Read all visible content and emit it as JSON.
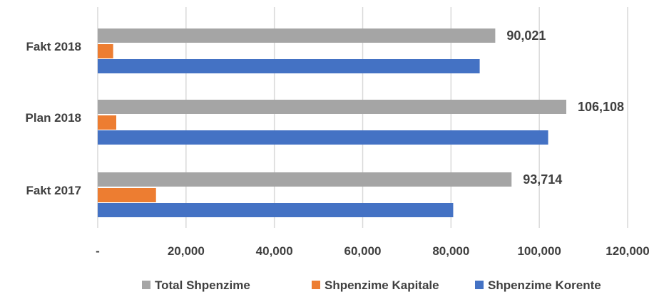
{
  "chart_data": {
    "type": "bar",
    "orientation": "horizontal",
    "categories": [
      "Fakt 2018",
      "Plan 2018",
      "Fakt  2017"
    ],
    "series": [
      {
        "name": "Total Shpenzime",
        "color": "#a5a5a5",
        "values": [
          90021,
          106108,
          93714
        ]
      },
      {
        "name": "Shpenzime Kapitale",
        "color": "#ed7d31",
        "values": [
          3500,
          4200,
          13200
        ]
      },
      {
        "name": "Shpenzime Korente",
        "color": "#4472c4",
        "values": [
          86500,
          102000,
          80500
        ]
      }
    ],
    "data_labels": [
      "90,021",
      "106,108",
      "93,714"
    ],
    "xlim": [
      0,
      120000
    ],
    "xticks": [
      0,
      20000,
      40000,
      60000,
      80000,
      100000,
      120000
    ],
    "xtick_labels": [
      "-",
      "20,000",
      "40,000",
      "60,000",
      "80,000",
      "100,000",
      "120,000"
    ],
    "grid": "vertical",
    "legend": "bottom",
    "title": "",
    "xlabel": "",
    "ylabel": ""
  }
}
